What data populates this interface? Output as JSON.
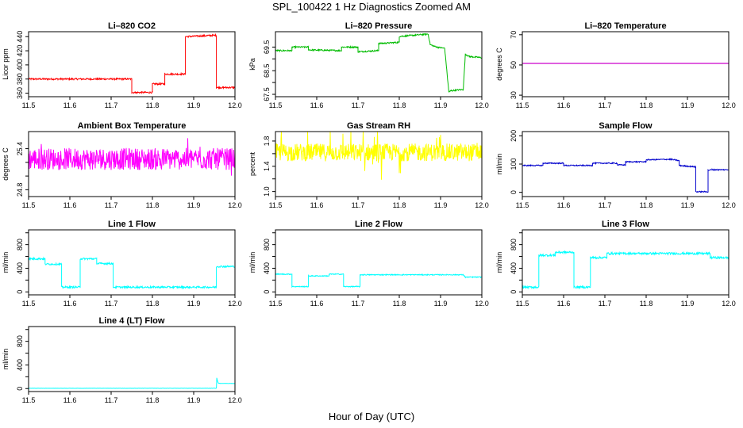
{
  "figure": {
    "title": "SPL_100422  1 Hz Diagnostics Zoomed AM",
    "xlabel": "Hour of Day (UTC)"
  },
  "chart_data": [
    {
      "id": "co2",
      "type": "line",
      "title": "Li–820 CO2",
      "ylabel": "Licor ppm",
      "color": "#ff0000",
      "xlim": [
        11.5,
        12.0
      ],
      "ylim": [
        355,
        447
      ],
      "xticks": [
        "11.5",
        "11.6",
        "11.7",
        "11.8",
        "11.9",
        "12.0"
      ],
      "yticks": [
        360,
        380,
        400,
        420,
        440
      ],
      "noise": 1.2,
      "x": [
        11.5,
        11.75,
        11.75,
        11.76,
        11.76,
        11.8,
        11.8,
        11.83,
        11.83,
        11.88,
        11.88,
        11.955,
        11.955,
        11.97,
        11.97,
        12.0
      ],
      "y": [
        380,
        380,
        361,
        361,
        361,
        361,
        373,
        373,
        387,
        387,
        440,
        442,
        368,
        368,
        368,
        368
      ]
    },
    {
      "id": "pressure",
      "type": "line",
      "title": "Li–820 Pressure",
      "ylabel": "kPa",
      "color": "#00bb00",
      "xlim": [
        11.5,
        12.0
      ],
      "ylim": [
        67.4,
        70.15
      ],
      "xticks": [
        "11.5",
        "11.6",
        "11.7",
        "11.8",
        "11.9",
        "12.0"
      ],
      "yticks": [
        "67.5",
        "68.5",
        "69.5"
      ],
      "yticks_minor": [
        68.0,
        69.0
      ],
      "noise": 0.03,
      "x": [
        11.5,
        11.54,
        11.54,
        11.58,
        11.58,
        11.66,
        11.66,
        11.7,
        11.7,
        11.75,
        11.75,
        11.8,
        11.8,
        11.87,
        11.875,
        11.89,
        11.91,
        11.92,
        11.925,
        11.95,
        11.955,
        11.96,
        11.97,
        12.0
      ],
      "y": [
        69.35,
        69.35,
        69.5,
        69.5,
        69.38,
        69.35,
        69.5,
        69.5,
        69.3,
        69.35,
        69.65,
        69.7,
        69.95,
        70.05,
        69.6,
        69.5,
        69.45,
        67.6,
        67.65,
        67.7,
        67.7,
        69.2,
        69.1,
        69.05
      ]
    },
    {
      "id": "temperature",
      "type": "line",
      "title": "Li–820 Temperature",
      "ylabel": "degrees C",
      "color": "#cc00cc",
      "xlim": [
        11.5,
        12.0
      ],
      "ylim": [
        29,
        72
      ],
      "xticks": [
        "11.5",
        "11.6",
        "11.7",
        "11.8",
        "11.9",
        "12.0"
      ],
      "yticks": [
        30,
        50,
        70
      ],
      "noise": 0,
      "x": [
        11.5,
        12.0
      ],
      "y": [
        51,
        51
      ]
    },
    {
      "id": "ambient",
      "type": "line",
      "title": "Ambient Box Temperature",
      "ylabel": "degrees C",
      "color": "#ff00ff",
      "xlim": [
        11.5,
        12.0
      ],
      "ylim": [
        24.7,
        25.65
      ],
      "xticks": [
        "11.5",
        "11.6",
        "11.7",
        "11.8",
        "11.9",
        "12.0"
      ],
      "yticks": [
        "24.8",
        "25.4"
      ],
      "yticks_minor": [
        25.0,
        25.2
      ],
      "noise": 0.16,
      "spikes": 0.3,
      "x": [
        11.5,
        12.0
      ],
      "y": [
        25.25,
        25.25
      ]
    },
    {
      "id": "rh",
      "type": "line",
      "title": "Gas Stream RH",
      "ylabel": "percent",
      "color": "#ffff00",
      "xlim": [
        11.5,
        12.0
      ],
      "ylim": [
        0.92,
        1.95
      ],
      "xticks": [
        "11.5",
        "11.6",
        "11.7",
        "11.8",
        "11.9",
        "12.0"
      ],
      "yticks": [
        "1.0",
        "1.4",
        "1.8"
      ],
      "yticks_minor": [
        1.2,
        1.6
      ],
      "noise": 0.14,
      "spikes": 0.6,
      "x": [
        11.5,
        12.0
      ],
      "y": [
        1.62,
        1.62
      ]
    },
    {
      "id": "sample",
      "type": "line",
      "title": "Sample Flow",
      "ylabel": "ml/min",
      "color": "#0000cc",
      "xlim": [
        11.5,
        12.0
      ],
      "ylim": [
        -15,
        215
      ],
      "xticks": [
        "11.5",
        "11.6",
        "11.7",
        "11.8",
        "11.9",
        "12.0"
      ],
      "yticks": [
        0,
        100,
        200
      ],
      "noise": 2,
      "x": [
        11.5,
        11.55,
        11.55,
        11.6,
        11.6,
        11.67,
        11.67,
        11.73,
        11.73,
        11.75,
        11.75,
        11.8,
        11.8,
        11.86,
        11.88,
        11.88,
        11.92,
        11.92,
        11.94,
        11.95,
        11.95,
        11.96,
        12.0
      ],
      "y": [
        95,
        95,
        103,
        103,
        95,
        95,
        103,
        103,
        97,
        97,
        108,
        108,
        115,
        117,
        112,
        95,
        90,
        2,
        2,
        2,
        78,
        80,
        80
      ]
    },
    {
      "id": "line1",
      "type": "line",
      "title": "Line 1 Flow",
      "ylabel": "ml/min",
      "color": "#00ffff",
      "xlim": [
        11.5,
        12.0
      ],
      "ylim": [
        -50,
        1050
      ],
      "xticks": [
        "11.5",
        "11.6",
        "11.7",
        "11.8",
        "11.9",
        "12.0"
      ],
      "yticks": [
        0,
        400,
        800
      ],
      "yticks_minor": [
        200,
        600,
        1000
      ],
      "noise": 15,
      "x": [
        11.5,
        11.54,
        11.54,
        11.58,
        11.58,
        11.625,
        11.625,
        11.665,
        11.665,
        11.705,
        11.705,
        11.955,
        11.955,
        12.0
      ],
      "y": [
        560,
        560,
        470,
        470,
        80,
        80,
        560,
        560,
        480,
        480,
        80,
        80,
        430,
        430
      ]
    },
    {
      "id": "line2",
      "type": "line",
      "title": "Line 2 Flow",
      "ylabel": "ml/min",
      "color": "#00ffff",
      "xlim": [
        11.5,
        12.0
      ],
      "ylim": [
        -50,
        1050
      ],
      "xticks": [
        "11.5",
        "11.6",
        "11.7",
        "11.8",
        "11.9",
        "12.0"
      ],
      "yticks": [
        0,
        400,
        800
      ],
      "yticks_minor": [
        200,
        600,
        1000
      ],
      "noise": 8,
      "x": [
        11.5,
        11.54,
        11.54,
        11.58,
        11.58,
        11.63,
        11.63,
        11.665,
        11.665,
        11.705,
        11.705,
        11.955,
        11.96,
        12.0
      ],
      "y": [
        300,
        300,
        90,
        90,
        270,
        270,
        300,
        300,
        90,
        90,
        290,
        290,
        250,
        250
      ]
    },
    {
      "id": "line3",
      "type": "line",
      "title": "Line 3 Flow",
      "ylabel": "ml/min",
      "color": "#00ffff",
      "xlim": [
        11.5,
        12.0
      ],
      "ylim": [
        -50,
        1050
      ],
      "xticks": [
        "11.5",
        "11.6",
        "11.7",
        "11.8",
        "11.9",
        "12.0"
      ],
      "yticks": [
        0,
        400,
        800
      ],
      "yticks_minor": [
        200,
        600,
        1000
      ],
      "noise": 18,
      "x": [
        11.5,
        11.54,
        11.54,
        11.58,
        11.58,
        11.625,
        11.625,
        11.665,
        11.665,
        11.705,
        11.705,
        11.955,
        11.955,
        12.0
      ],
      "y": [
        80,
        80,
        620,
        620,
        670,
        670,
        80,
        80,
        580,
        580,
        650,
        650,
        580,
        580
      ]
    },
    {
      "id": "line4",
      "type": "line",
      "title": "Line 4 (LT) Flow",
      "ylabel": "ml/min",
      "color": "#00ffff",
      "xlim": [
        11.5,
        12.0
      ],
      "ylim": [
        -50,
        1050
      ],
      "xticks": [
        "11.5",
        "11.6",
        "11.7",
        "11.8",
        "11.9",
        "12.0"
      ],
      "yticks": [
        0,
        400,
        800
      ],
      "yticks_minor": [
        200,
        600,
        1000
      ],
      "noise": 2,
      "x": [
        11.5,
        11.955,
        11.956,
        11.958,
        11.96,
        12.0
      ],
      "y": [
        5,
        5,
        180,
        120,
        90,
        85
      ]
    }
  ]
}
